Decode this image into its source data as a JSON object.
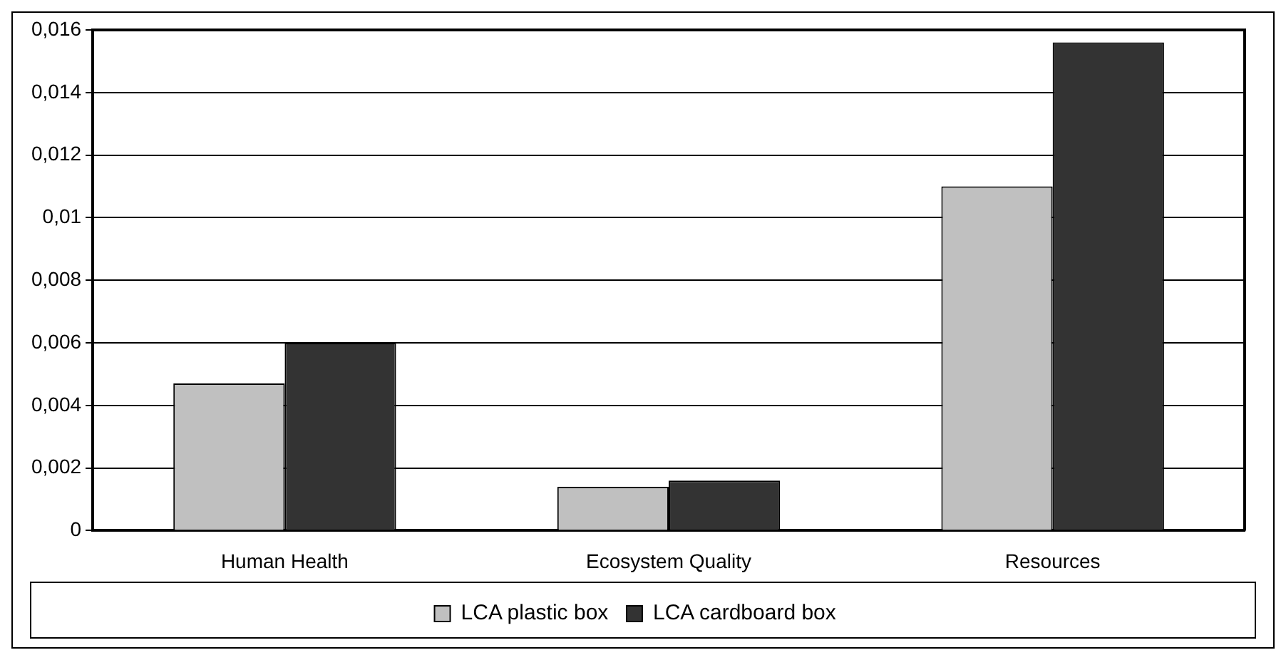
{
  "chart_data": {
    "type": "bar",
    "categories": [
      "Human Health",
      "Ecosystem Quality",
      "Resources"
    ],
    "series": [
      {
        "name": "LCA plastic box",
        "color": "#c0c0c0",
        "values": [
          0.0047,
          0.0014,
          0.011
        ]
      },
      {
        "name": "LCA cardboard box",
        "color": "#333333",
        "values": [
          0.006,
          0.0016,
          0.0156
        ]
      }
    ],
    "ylim": [
      0,
      0.016
    ],
    "yticks": [
      {
        "value": 0,
        "label": "0"
      },
      {
        "value": 0.002,
        "label": "0,002"
      },
      {
        "value": 0.004,
        "label": "0,004"
      },
      {
        "value": 0.006,
        "label": "0,006"
      },
      {
        "value": 0.008,
        "label": "0,008"
      },
      {
        "value": 0.01,
        "label": "0,01"
      },
      {
        "value": 0.012,
        "label": "0,012"
      },
      {
        "value": 0.014,
        "label": "0,014"
      },
      {
        "value": 0.016,
        "label": "0,016"
      }
    ],
    "grid": "y",
    "legend": "bottom"
  }
}
